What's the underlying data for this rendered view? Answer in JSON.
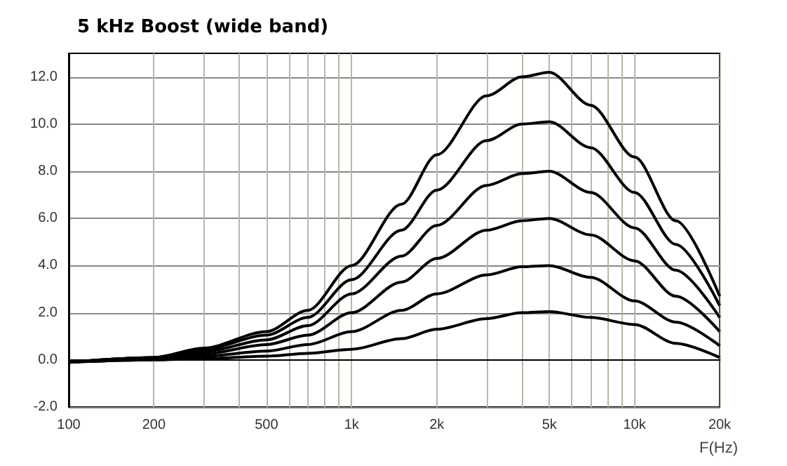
{
  "chart_data": {
    "type": "line",
    "title": "5 kHz Boost (wide band)",
    "xlabel": "F(Hz)",
    "x": [
      100,
      200,
      300,
      500,
      700,
      1000,
      1500,
      2000,
      3000,
      4000,
      5000,
      7000,
      10000,
      14000,
      20000
    ],
    "series": [
      {
        "color": "#000000",
        "values": [
          -0.1,
          0.1,
          0.5,
          1.2,
          2.1,
          4.0,
          6.6,
          8.7,
          11.2,
          12.0,
          12.2,
          10.8,
          8.6,
          5.9,
          2.7
        ]
      },
      {
        "color": "#000000",
        "values": [
          -0.1,
          0.1,
          0.45,
          1.05,
          1.8,
          3.4,
          5.5,
          7.2,
          9.3,
          10.0,
          10.1,
          9.0,
          7.1,
          4.9,
          2.3
        ]
      },
      {
        "color": "#000000",
        "values": [
          -0.1,
          0.1,
          0.35,
          0.85,
          1.45,
          2.8,
          4.4,
          5.7,
          7.4,
          7.9,
          8.0,
          7.1,
          5.6,
          3.8,
          1.8
        ]
      },
      {
        "color": "#000000",
        "values": [
          -0.1,
          0.05,
          0.25,
          0.65,
          1.05,
          2.0,
          3.3,
          4.3,
          5.5,
          5.9,
          6.0,
          5.3,
          4.2,
          2.7,
          1.2
        ]
      },
      {
        "color": "#000000",
        "values": [
          -0.1,
          0.0,
          0.15,
          0.37,
          0.65,
          1.2,
          2.1,
          2.8,
          3.6,
          3.95,
          4.0,
          3.5,
          2.5,
          1.6,
          0.6
        ]
      },
      {
        "color": "#000000",
        "values": [
          -0.1,
          0.0,
          0.05,
          0.16,
          0.28,
          0.45,
          0.9,
          1.3,
          1.75,
          2.0,
          2.05,
          1.8,
          1.5,
          0.7,
          0.1
        ]
      }
    ],
    "log": "x",
    "xlim": [
      100,
      20000
    ],
    "ylim": [
      -2,
      13
    ],
    "xticks": [
      {
        "value": 100,
        "label": "100"
      },
      {
        "value": 200,
        "label": "200"
      },
      {
        "value": 300,
        "label": null
      },
      {
        "value": 400,
        "label": null
      },
      {
        "value": 500,
        "label": "500"
      },
      {
        "value": 600,
        "label": null
      },
      {
        "value": 700,
        "label": null
      },
      {
        "value": 800,
        "label": null
      },
      {
        "value": 900,
        "label": null
      },
      {
        "value": 1000,
        "label": "1k"
      },
      {
        "value": 2000,
        "label": "2k"
      },
      {
        "value": 3000,
        "label": null
      },
      {
        "value": 4000,
        "label": null
      },
      {
        "value": 5000,
        "label": "5k"
      },
      {
        "value": 6000,
        "label": null
      },
      {
        "value": 7000,
        "label": null
      },
      {
        "value": 8000,
        "label": null
      },
      {
        "value": 9000,
        "label": null
      },
      {
        "value": 10000,
        "label": "10k"
      },
      {
        "value": 20000,
        "label": "20k"
      }
    ],
    "yticks": [
      {
        "value": -2,
        "label": "-2.0"
      },
      {
        "value": 0,
        "label": "0.0"
      },
      {
        "value": 2,
        "label": "2.0"
      },
      {
        "value": 4,
        "label": "4.0"
      },
      {
        "value": 6,
        "label": "6.0"
      },
      {
        "value": 8,
        "label": "8.0"
      },
      {
        "value": 10,
        "label": "10.0"
      },
      {
        "value": 12,
        "label": "12.0"
      }
    ],
    "grid": true,
    "marker": "none",
    "line_style": "solid"
  }
}
